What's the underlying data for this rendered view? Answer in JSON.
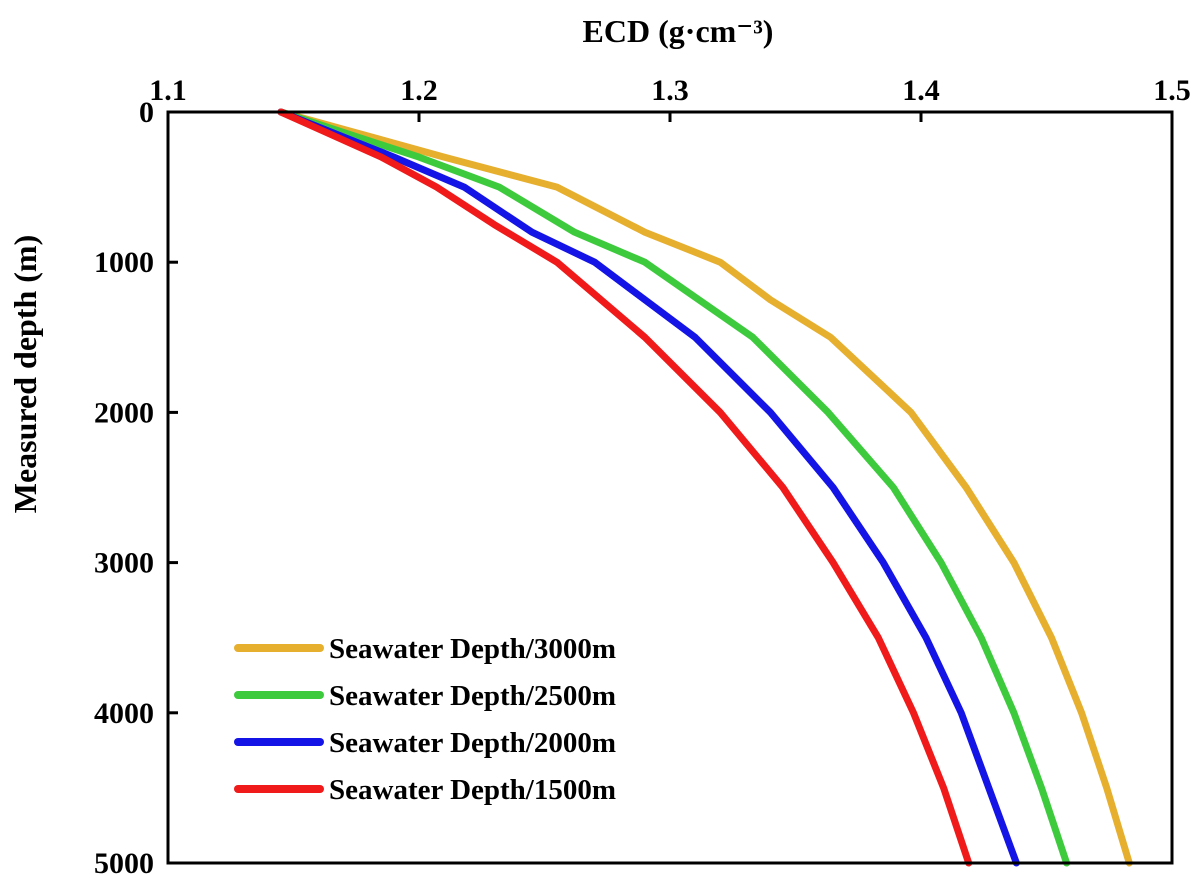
{
  "chart_data": {
    "type": "line",
    "xlabel": "ECD (g·cm⁻³)",
    "ylabel": "Measured depth (m)",
    "xlim": [
      1.1,
      1.5
    ],
    "ylim": [
      0,
      5000
    ],
    "y_inverted": true,
    "x_axis_position": "top",
    "xticks": [
      1.1,
      1.2,
      1.3,
      1.4,
      1.5
    ],
    "yticks": [
      0,
      1000,
      2000,
      3000,
      4000,
      5000
    ],
    "grid": false,
    "legend_position": "bottom-left",
    "series": [
      {
        "name": "Seawater Depth/3000m",
        "color": "#E6AF2E",
        "points": [
          [
            1.145,
            0
          ],
          [
            1.21,
            300
          ],
          [
            1.255,
            500
          ],
          [
            1.29,
            800
          ],
          [
            1.32,
            1000
          ],
          [
            1.34,
            1250
          ],
          [
            1.364,
            1500
          ],
          [
            1.38,
            1750
          ],
          [
            1.396,
            2000
          ],
          [
            1.418,
            2500
          ],
          [
            1.437,
            3000
          ],
          [
            1.452,
            3500
          ],
          [
            1.464,
            4000
          ],
          [
            1.474,
            4500
          ],
          [
            1.483,
            5000
          ]
        ]
      },
      {
        "name": "Seawater Depth/2500m",
        "color": "#3DCB3D",
        "points": [
          [
            1.145,
            0
          ],
          [
            1.2,
            300
          ],
          [
            1.232,
            500
          ],
          [
            1.262,
            800
          ],
          [
            1.29,
            1000
          ],
          [
            1.333,
            1500
          ],
          [
            1.363,
            2000
          ],
          [
            1.389,
            2500
          ],
          [
            1.408,
            3000
          ],
          [
            1.424,
            3500
          ],
          [
            1.437,
            4000
          ],
          [
            1.448,
            4500
          ],
          [
            1.458,
            5000
          ]
        ]
      },
      {
        "name": "Seawater Depth/2000m",
        "color": "#1414E6",
        "points": [
          [
            1.145,
            0
          ],
          [
            1.19,
            300
          ],
          [
            1.218,
            500
          ],
          [
            1.245,
            800
          ],
          [
            1.27,
            1000
          ],
          [
            1.31,
            1500
          ],
          [
            1.34,
            2000
          ],
          [
            1.365,
            2500
          ],
          [
            1.385,
            3000
          ],
          [
            1.402,
            3500
          ],
          [
            1.416,
            4000
          ],
          [
            1.427,
            4500
          ],
          [
            1.438,
            5000
          ]
        ]
      },
      {
        "name": "Seawater Depth/1500m",
        "color": "#F01A1A",
        "points": [
          [
            1.145,
            0
          ],
          [
            1.185,
            300
          ],
          [
            1.207,
            500
          ],
          [
            1.23,
            750
          ],
          [
            1.255,
            1000
          ],
          [
            1.29,
            1500
          ],
          [
            1.32,
            2000
          ],
          [
            1.345,
            2500
          ],
          [
            1.365,
            3000
          ],
          [
            1.383,
            3500
          ],
          [
            1.397,
            4000
          ],
          [
            1.409,
            4500
          ],
          [
            1.419,
            5000
          ]
        ]
      }
    ],
    "legend_order": [
      0,
      1,
      2,
      3
    ]
  }
}
